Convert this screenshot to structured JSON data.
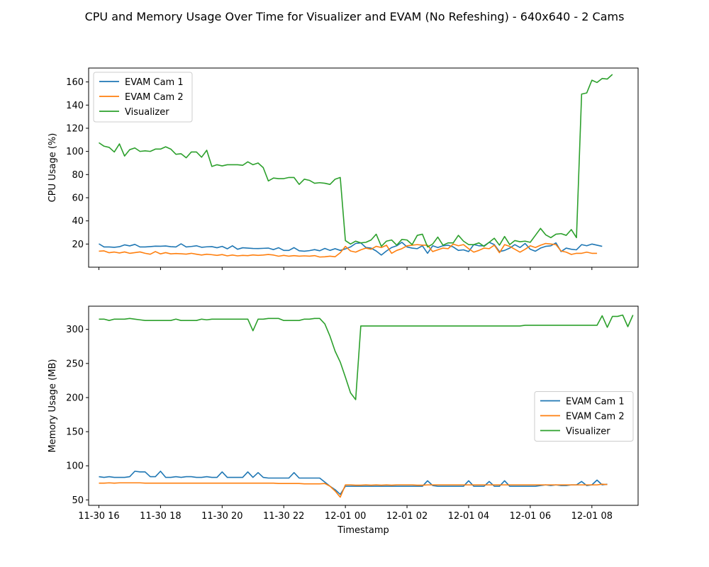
{
  "figure": {
    "title": "CPU and Memory Usage Over Time for Visualizer and EVAM (No Refeshing) - 640x640 - 2 Cams"
  },
  "colors": {
    "EVAM Cam 1": "#1f77b4",
    "EVAM Cam 2": "#ff7f0e",
    "Visualizer": "#2ca02c"
  },
  "chart_data": [
    {
      "type": "line",
      "title": "",
      "xlabel": "",
      "ylabel": "CPU Usage (%)",
      "x_range": [
        "2023-11-30 15:40",
        "2023-12-01 09:30"
      ],
      "x_step_minutes": 10,
      "x_start": "2023-11-30 16:00",
      "ylim": [
        0,
        172
      ],
      "yticks": [
        20,
        40,
        60,
        80,
        100,
        120,
        140,
        160
      ],
      "xticks": [],
      "grid": false,
      "legend_position": "upper left",
      "series": [
        {
          "name": "EVAM Cam 1",
          "values": [
            20.2,
            17.5,
            17.5,
            17.2,
            17.7,
            19.3,
            18.4,
            19.7,
            17.5,
            17.5,
            17.8,
            18.2,
            18.1,
            18.3,
            17.7,
            17.5,
            20.2,
            17.5,
            17.9,
            18.5,
            17.2,
            17.6,
            17.8,
            16.8,
            18.0,
            15.9,
            18.5,
            15.5,
            16.8,
            16.5,
            16.2,
            16.1,
            16.3,
            16.5,
            15.2,
            16.8,
            14.5,
            14.5,
            16.9,
            14.2,
            13.8,
            14.3,
            15.2,
            14.2,
            16.2,
            14.5,
            16.0,
            14.5,
            15.8,
            17.5,
            20.5,
            21.0,
            17.0,
            16.5,
            14.0,
            10.5,
            14.0,
            17.0,
            18.5,
            21.5,
            17.5,
            16.5,
            16.0,
            18.5,
            12.0,
            18.5,
            17.0,
            18.5,
            19.0,
            17.5,
            14.5,
            15.0,
            13.5,
            19.5,
            18.5,
            18.5,
            21.5,
            19.5,
            13.5,
            14.5,
            16.5,
            19.5,
            17.0,
            20.5,
            15.5,
            13.8,
            16.5,
            18.0,
            18.5,
            21.0,
            13.5,
            16.5,
            15.5,
            15.0,
            19.5,
            18.5,
            20.0,
            19.0,
            18.0
          ]
        },
        {
          "name": "EVAM Cam 2",
          "values": [
            13.8,
            14.1,
            12.5,
            13.1,
            12.3,
            13.2,
            12.0,
            12.6,
            13.2,
            12.0,
            11.2,
            13.5,
            11.5,
            12.6,
            11.5,
            11.8,
            11.6,
            11.3,
            12.0,
            11.2,
            10.5,
            11.2,
            10.8,
            10.2,
            10.9,
            9.8,
            10.5,
            9.8,
            10.2,
            10.0,
            10.6,
            10.2,
            10.5,
            11.0,
            10.5,
            9.5,
            10.2,
            9.5,
            10.0,
            9.5,
            9.8,
            9.5,
            10.0,
            8.8,
            9.0,
            9.5,
            9.0,
            12.5,
            18.0,
            14.0,
            13.0,
            15.0,
            16.5,
            15.5,
            18.0,
            17.0,
            19.0,
            12.0,
            14.5,
            16.0,
            18.5,
            19.0,
            19.5,
            19.0,
            19.0,
            13.5,
            15.0,
            16.5,
            16.0,
            20.0,
            18.5,
            19.5,
            16.0,
            13.0,
            14.5,
            16.5,
            16.0,
            19.0,
            12.5,
            19.5,
            18.0,
            15.5,
            13.0,
            15.5,
            18.5,
            17.0,
            19.0,
            20.5,
            20.0,
            19.5,
            14.0,
            13.0,
            11.0,
            12.0,
            12.0,
            13.0,
            12.0,
            12.0
          ]
        },
        {
          "name": "Visualizer",
          "values": [
            107.5,
            104.5,
            103.5,
            99.5,
            106.5,
            96.0,
            101.5,
            103.0,
            100.0,
            100.5,
            100.0,
            102.0,
            102.0,
            104.0,
            102.0,
            97.5,
            98.0,
            94.5,
            99.5,
            99.5,
            95.0,
            101.0,
            87.0,
            88.5,
            87.5,
            88.5,
            88.5,
            88.5,
            88.0,
            91.0,
            88.5,
            90.0,
            86.0,
            74.5,
            77.0,
            76.5,
            76.5,
            77.5,
            77.5,
            71.5,
            76.0,
            75.0,
            72.5,
            73.0,
            72.5,
            71.5,
            76.0,
            77.5,
            23.0,
            20.0,
            22.5,
            21.0,
            21.5,
            23.5,
            28.5,
            18.0,
            22.5,
            23.5,
            19.0,
            24.0,
            23.5,
            19.5,
            27.5,
            28.5,
            17.5,
            20.0,
            26.0,
            19.0,
            21.0,
            21.0,
            27.5,
            22.5,
            19.5,
            19.5,
            21.0,
            18.0,
            21.5,
            25.0,
            19.0,
            26.5,
            19.5,
            23.0,
            22.0,
            22.5,
            21.5,
            27.5,
            33.5,
            28.0,
            25.5,
            28.5,
            29.0,
            27.5,
            32.5,
            25.5,
            149.5,
            150.5,
            161.5,
            159.5,
            163.0,
            162.5,
            166.5
          ]
        }
      ]
    },
    {
      "type": "line",
      "title": "",
      "xlabel": "Timestamp",
      "ylabel": "Memory Usage (MB)",
      "x_range": [
        "2023-11-30 15:40",
        "2023-12-01 09:30"
      ],
      "x_step_minutes": 10,
      "x_start": "2023-11-30 16:00",
      "ylim": [
        42,
        334
      ],
      "yticks": [
        50,
        100,
        150,
        200,
        250,
        300
      ],
      "xticks": [
        "11-30 16",
        "11-30 18",
        "11-30 20",
        "11-30 22",
        "12-01 00",
        "12-01 02",
        "12-01 04",
        "12-01 06",
        "12-01 08"
      ],
      "grid": false,
      "legend_position": "center right",
      "series": [
        {
          "name": "EVAM Cam 1",
          "values": [
            84,
            83,
            84,
            83,
            83,
            83,
            84,
            92,
            91,
            91,
            84,
            84,
            92,
            83,
            83,
            84,
            83,
            84,
            84,
            83,
            83,
            84,
            83,
            83,
            91,
            83,
            83,
            83,
            83,
            91,
            83,
            90,
            83,
            82,
            82,
            82,
            82,
            82,
            90,
            82,
            82,
            82,
            82,
            82,
            76,
            70,
            65,
            58,
            70,
            70,
            70,
            70,
            70,
            70,
            70,
            70,
            70,
            70,
            70,
            70,
            70,
            70,
            70,
            70,
            78,
            71,
            70,
            70,
            70,
            70,
            70,
            70,
            78,
            70,
            70,
            70,
            77,
            70,
            70,
            78,
            70,
            70,
            70,
            70,
            70,
            70,
            71,
            72,
            71,
            72,
            71,
            71,
            72,
            72,
            77,
            71,
            72,
            79,
            72,
            73
          ]
        },
        {
          "name": "EVAM Cam 2",
          "values": [
            74.5,
            74.5,
            75,
            74.5,
            75,
            75,
            75,
            75,
            75,
            74.5,
            74.5,
            74.5,
            74.5,
            74.5,
            74.5,
            74.5,
            74.5,
            74.5,
            74.5,
            74.5,
            74.5,
            74.5,
            74.5,
            74.5,
            74.5,
            74.5,
            74.5,
            74.5,
            74.5,
            74.5,
            74.5,
            74.5,
            74.5,
            74.5,
            74.5,
            74,
            74,
            74,
            74,
            74,
            73.5,
            73.5,
            73.5,
            73.5,
            74,
            70,
            63,
            54,
            72,
            72,
            71.5,
            71.5,
            72,
            71.5,
            72,
            71.5,
            72,
            71.5,
            72,
            72,
            72,
            72,
            71.5,
            71.5,
            72,
            72,
            72,
            72,
            72,
            72,
            72,
            72,
            72,
            72,
            72,
            72,
            72,
            72,
            72,
            72,
            72,
            72,
            72,
            72,
            72,
            72,
            72,
            72,
            72,
            72,
            72,
            72,
            72,
            72,
            72,
            72,
            72,
            72,
            73,
            72.5
          ]
        },
        {
          "name": "Visualizer",
          "values": [
            315,
            315,
            313,
            315,
            315,
            315,
            316,
            315,
            314,
            313,
            313,
            313,
            313,
            313,
            313,
            315,
            313,
            313,
            313,
            313,
            315,
            314,
            315,
            315,
            315,
            315,
            315,
            315,
            315,
            315,
            298,
            315,
            315,
            316,
            316,
            316,
            313,
            313,
            313,
            313,
            315,
            315,
            316,
            316,
            308,
            290,
            268,
            252,
            230,
            207,
            197,
            305,
            305,
            305,
            305,
            305,
            305,
            305,
            305,
            305,
            305,
            305,
            305,
            305,
            305,
            305,
            305,
            305,
            305,
            305,
            305,
            305,
            305,
            305,
            305,
            305,
            305,
            305,
            305,
            305,
            305,
            305,
            305,
            306,
            306,
            306,
            306,
            306,
            306,
            306,
            306,
            306,
            306,
            306,
            306,
            306,
            306,
            306,
            320,
            303,
            319,
            319,
            321,
            304,
            321
          ]
        }
      ]
    }
  ]
}
